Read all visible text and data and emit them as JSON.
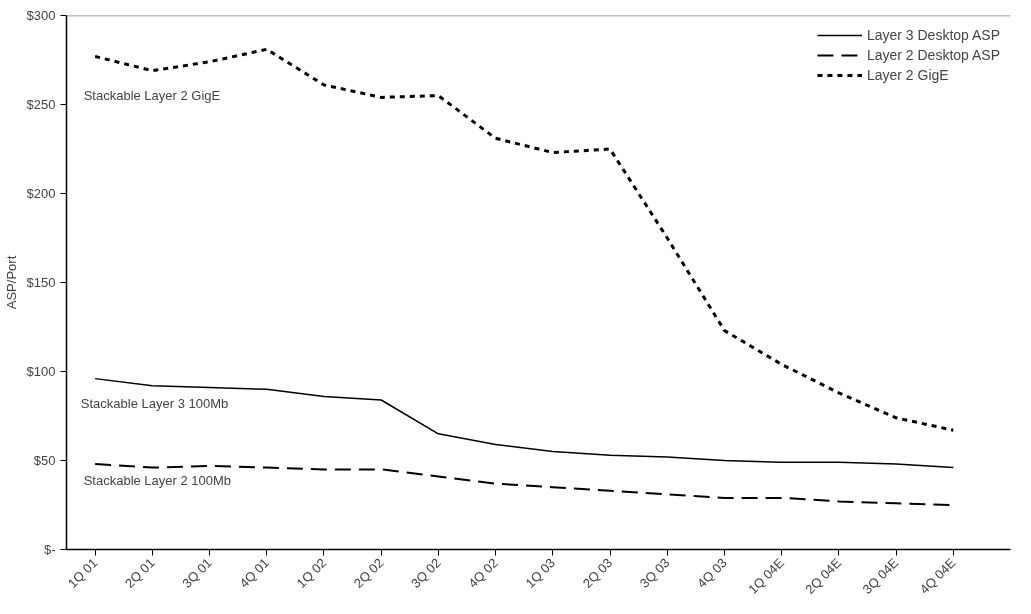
{
  "chart_data": {
    "type": "line",
    "ylabel": "ASP/Port",
    "categories": [
      "1Q 01",
      "2Q 01",
      "3Q 01",
      "4Q 01",
      "1Q 02",
      "2Q 02",
      "3Q 02",
      "4Q 02",
      "1Q 03",
      "2Q 03",
      "3Q 03",
      "4Q 03",
      "1Q 04E",
      "2Q 04E",
      "3Q 04E",
      "4Q 04E"
    ],
    "series": [
      {
        "name": "Layer 3 Desktop ASP",
        "color": "#000000",
        "line_style": "solid",
        "values": [
          96,
          92,
          91,
          90,
          86,
          84,
          65,
          59,
          55,
          53,
          52,
          50,
          49,
          49,
          48,
          46
        ]
      },
      {
        "name": "Layer 2 Desktop ASP",
        "color": "#000000",
        "line_style": "dashed",
        "values": [
          48,
          46,
          47,
          46,
          45,
          45,
          41,
          37,
          35,
          33,
          31,
          29,
          29,
          27,
          26,
          25
        ]
      },
      {
        "name": "Layer 2 GigE",
        "color": "#000000",
        "line_style": "dotted",
        "values": [
          277,
          269,
          274,
          281,
          261,
          254,
          255,
          231,
          223,
          225,
          175,
          123,
          104,
          88,
          74,
          67
        ]
      }
    ],
    "ylim": [
      0,
      300
    ],
    "yticks": [
      {
        "value": 0,
        "label": "$-"
      },
      {
        "value": 50,
        "label": "$50"
      },
      {
        "value": 100,
        "label": "$100"
      },
      {
        "value": 150,
        "label": "$150"
      },
      {
        "value": 200,
        "label": "$200"
      },
      {
        "value": 250,
        "label": "$250"
      },
      {
        "value": 300,
        "label": "$300"
      }
    ],
    "annotations": [
      "Stackable Layer 2 GigE",
      "Stackable Layer 3 100Mb",
      "Stackable Layer 2 100Mb"
    ],
    "grid": false,
    "legend": "top right",
    "marker": "none"
  }
}
